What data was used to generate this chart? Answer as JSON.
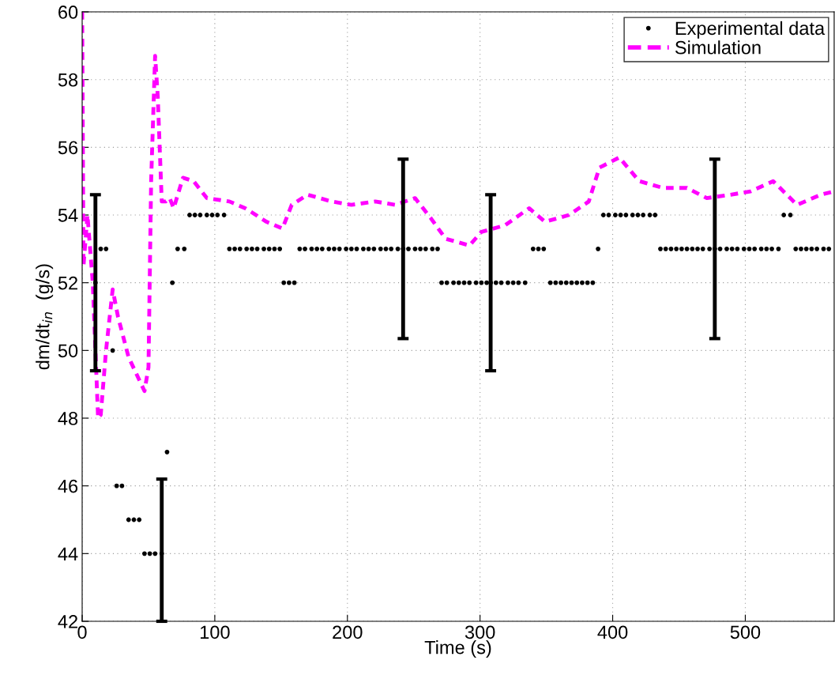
{
  "chart_data": {
    "type": "scatter",
    "xlabel": "Time (s)",
    "ylabel": "dm/dt$_{in}$  (g/s)",
    "xlim": [
      0,
      567
    ],
    "ylim": [
      42,
      60
    ],
    "xticks": [
      0,
      100,
      200,
      300,
      400,
      500
    ],
    "yticks": [
      42,
      44,
      46,
      48,
      50,
      52,
      54,
      56,
      58,
      60
    ],
    "grid": true,
    "legend": "top right",
    "series": [
      {
        "name": "Experimental data",
        "color": "#000000",
        "marker": "circle",
        "x": [
          10,
          14,
          18,
          23,
          26,
          30,
          35,
          39,
          43,
          47,
          51,
          55,
          60,
          64,
          68,
          72,
          77,
          81,
          85,
          89,
          94,
          98,
          102,
          107,
          111,
          115,
          119,
          124,
          128,
          132,
          137,
          141,
          145,
          149,
          152,
          156,
          160,
          164,
          168,
          173,
          177,
          181,
          186,
          190,
          194,
          199,
          203,
          207,
          212,
          216,
          220,
          225,
          229,
          233,
          238,
          242,
          246,
          251,
          255,
          259,
          264,
          268,
          271,
          275,
          280,
          284,
          288,
          292,
          297,
          301,
          305,
          308,
          312,
          316,
          321,
          325,
          329,
          334,
          340,
          344,
          348,
          353,
          357,
          361,
          365,
          369,
          373,
          377,
          381,
          385,
          389,
          393,
          397,
          402,
          406,
          410,
          415,
          419,
          423,
          428,
          432,
          436,
          440,
          444,
          448,
          452,
          456,
          460,
          464,
          468,
          473,
          477,
          481,
          486,
          490,
          494,
          499,
          503,
          507,
          512,
          516,
          520,
          525,
          529,
          534,
          538,
          542,
          546,
          550,
          554,
          559,
          563
        ],
        "values": [
          52,
          53,
          53,
          50,
          46,
          46,
          45,
          45,
          45,
          44,
          44,
          44,
          44,
          47,
          52,
          53,
          53,
          54,
          54,
          54,
          54,
          54,
          54,
          54,
          53,
          53,
          53,
          53,
          53,
          53,
          53,
          53,
          53,
          53,
          52,
          52,
          52,
          53,
          53,
          53,
          53,
          53,
          53,
          53,
          53,
          53,
          53,
          53,
          53,
          53,
          53,
          53,
          53,
          53,
          53,
          53,
          53,
          53,
          53,
          53,
          53,
          53,
          52,
          52,
          52,
          52,
          52,
          52,
          52,
          52,
          52,
          52,
          52,
          52,
          52,
          52,
          52,
          52,
          53,
          53,
          53,
          52,
          52,
          52,
          52,
          52,
          52,
          52,
          52,
          52,
          53,
          54,
          54,
          54,
          54,
          54,
          54,
          54,
          54,
          54,
          54,
          53,
          53,
          53,
          53,
          53,
          53,
          53,
          53,
          53,
          53,
          53,
          53,
          53,
          53,
          53,
          53,
          53,
          53,
          53,
          53,
          53,
          53,
          54,
          54,
          53,
          53,
          53,
          53,
          53,
          53,
          53
        ],
        "errors": [
          2.6,
          null,
          null,
          null,
          null,
          null,
          null,
          null,
          null,
          null,
          null,
          null,
          [
            42,
            46.2
          ],
          null,
          null,
          null,
          null,
          null,
          null,
          null,
          null,
          null,
          null,
          null,
          null,
          null,
          null,
          null,
          null,
          null,
          null,
          null,
          null,
          null,
          null,
          null,
          null,
          null,
          null,
          null,
          null,
          null,
          null,
          null,
          null,
          null,
          null,
          null,
          null,
          null,
          null,
          null,
          null,
          null,
          null,
          2.65,
          null,
          null,
          null,
          null,
          null,
          null,
          null,
          null,
          null,
          null,
          null,
          null,
          null,
          null,
          null,
          2.6,
          null,
          null,
          null,
          null,
          null,
          null,
          null,
          null,
          null,
          null,
          null,
          null,
          null,
          null,
          null,
          null,
          null,
          null,
          null,
          null,
          null,
          null,
          null,
          null,
          null,
          null,
          null,
          null,
          null,
          null,
          null,
          null,
          null,
          null,
          null,
          null,
          null,
          null,
          null,
          2.65,
          null,
          null,
          null,
          null,
          null,
          null,
          null,
          null,
          null,
          null,
          null,
          null,
          null,
          null,
          null,
          null,
          null,
          null,
          null,
          null
        ]
      },
      {
        "name": "Simulation",
        "type": "line",
        "color": "#ff00ff",
        "line_style": "dashed",
        "marker": "none",
        "x": [
          0,
          1,
          4,
          8,
          12,
          14,
          18,
          23,
          27,
          35,
          47,
          50,
          52,
          55,
          57,
          60,
          63,
          66,
          69,
          76,
          84,
          94,
          111,
          123,
          139,
          151,
          158,
          170,
          188,
          203,
          221,
          236,
          251,
          263,
          274,
          292,
          301,
          319,
          337,
          349,
          367,
          382,
          390,
          405,
          420,
          438,
          456,
          471,
          489,
          504,
          521,
          539,
          557,
          567
        ],
        "values": [
          60,
          52.5,
          54,
          52,
          48,
          48.1,
          50,
          51.8,
          51,
          49.8,
          48.8,
          49.5,
          55,
          58.7,
          57.5,
          54.4,
          54.4,
          54.5,
          54.2,
          55.1,
          55,
          54.5,
          54.4,
          54.2,
          53.8,
          53.6,
          54.3,
          54.6,
          54.4,
          54.3,
          54.4,
          54.3,
          54.5,
          53.9,
          53.3,
          53.1,
          53.5,
          53.7,
          54.2,
          53.8,
          54,
          54.4,
          55.4,
          55.7,
          55,
          54.8,
          54.8,
          54.5,
          54.6,
          54.7,
          55,
          54.3,
          54.6,
          54.7
        ]
      }
    ]
  }
}
